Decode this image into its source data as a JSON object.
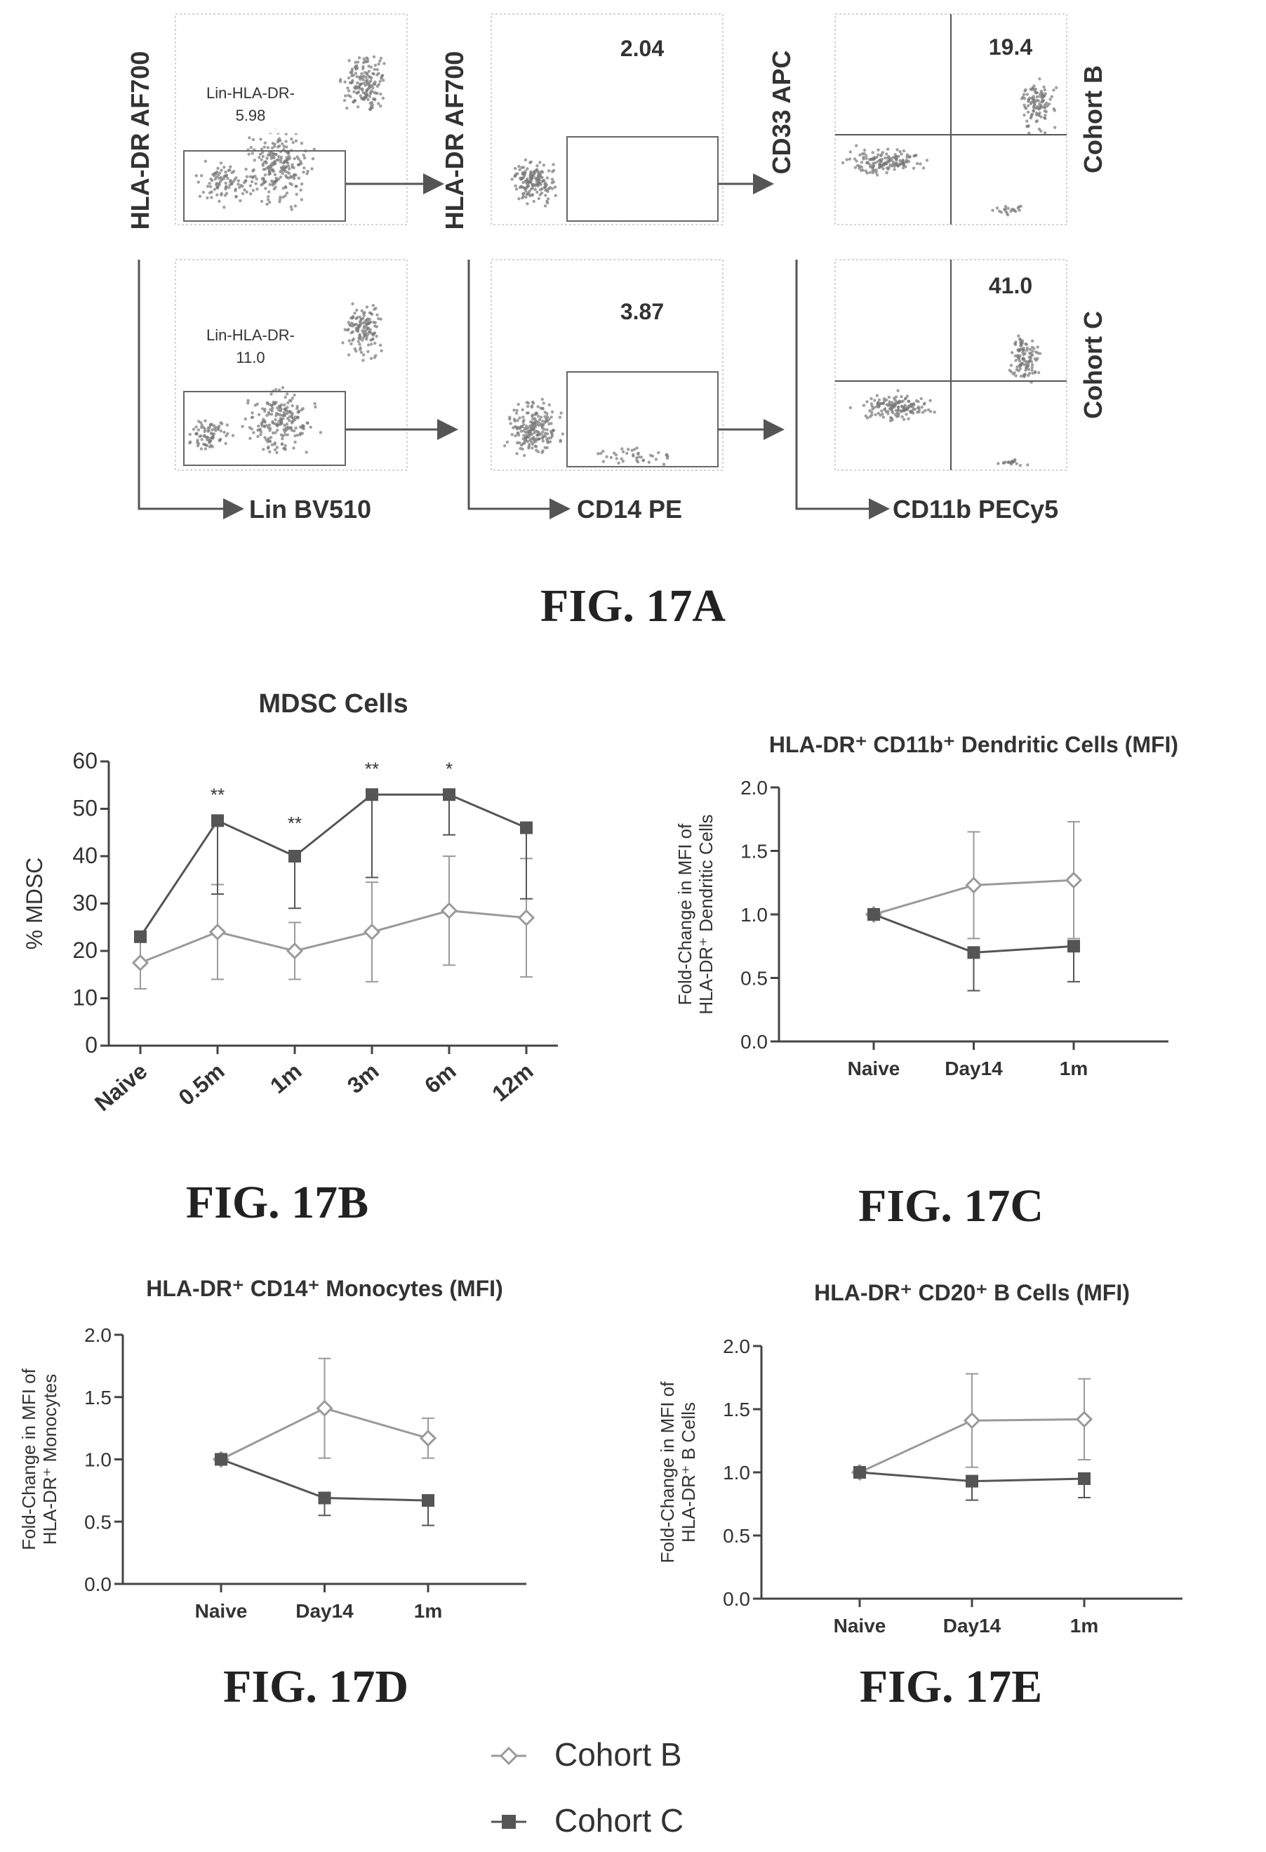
{
  "figure_labels": {
    "a": "FIG. 17A",
    "b": "FIG. 17B",
    "c": "FIG. 17C",
    "d": "FIG. 17D",
    "e": "FIG. 17E"
  },
  "legend": {
    "items": [
      {
        "name": "Cohort B",
        "color": "#9a9a9a",
        "marker": "open-diamond"
      },
      {
        "name": "Cohort C",
        "color": "#555555",
        "marker": "filled-square"
      }
    ]
  },
  "flow": {
    "row_labels": [
      "Cohort B",
      "Cohort C"
    ],
    "col1": {
      "ylabel": "HLA-DR AF700",
      "xlabel": "Lin BV510",
      "gate_name": "Lin-HLA-DR-",
      "values": [
        "5.98",
        "11.0"
      ]
    },
    "col2": {
      "ylabel": "HLA-DR AF700",
      "xlabel": "CD14 PE",
      "values": [
        "2.04",
        "3.87"
      ]
    },
    "col3": {
      "ylabel": "CD33 APC",
      "xlabel": "CD11b PECy5",
      "values": [
        "19.4",
        "41.0"
      ]
    }
  },
  "chart_data": [
    {
      "id": "b",
      "type": "line",
      "title": "MDSC Cells",
      "ylabel": "% MDSC",
      "categories": [
        "Naive",
        "0.5m",
        "1m",
        "3m",
        "6m",
        "12m"
      ],
      "ylim": [
        0,
        60
      ],
      "yticks": [
        "0",
        "10",
        "20",
        "30",
        "40",
        "50",
        "60"
      ],
      "series": [
        {
          "name": "Cohort B",
          "values": [
            17.5,
            24,
            20,
            24,
            28.5,
            27
          ],
          "err": [
            5.5,
            10,
            6,
            10.5,
            11.5,
            12.5
          ]
        },
        {
          "name": "Cohort C",
          "values": [
            23,
            47.5,
            40,
            53,
            53,
            46
          ],
          "err": [
            0,
            15.5,
            11,
            17.5,
            8.5,
            15
          ]
        }
      ],
      "annotations": [
        "**",
        "**",
        "**",
        "*"
      ]
    },
    {
      "id": "c",
      "type": "line",
      "title": "HLA-DR⁺ CD11b⁺ Dendritic Cells (MFI)",
      "ylabel_line1": "Fold-Change in MFI of",
      "ylabel_line2": "HLA-DR⁺ Dendritic Cells",
      "categories": [
        "Naive",
        "Day14",
        "1m"
      ],
      "ylim": [
        0,
        2
      ],
      "yticks": [
        "0.0",
        "0.5",
        "1.0",
        "1.5",
        "2.0"
      ],
      "series": [
        {
          "name": "Cohort B",
          "values": [
            1.0,
            1.23,
            1.27
          ],
          "err": [
            0,
            0.42,
            0.46
          ]
        },
        {
          "name": "Cohort C",
          "values": [
            1.0,
            0.7,
            0.75
          ],
          "err": [
            0,
            0.3,
            0.28
          ]
        }
      ]
    },
    {
      "id": "d",
      "type": "line",
      "title": "HLA-DR⁺ CD14⁺ Monocytes (MFI)",
      "ylabel_line1": "Fold-Change in MFI of",
      "ylabel_line2": "HLA-DR⁺ Monocytes",
      "categories": [
        "Naive",
        "Day14",
        "1m"
      ],
      "ylim": [
        0,
        2
      ],
      "yticks": [
        "0.0",
        "0.5",
        "1.0",
        "1.5",
        "2.0"
      ],
      "series": [
        {
          "name": "Cohort B",
          "values": [
            1.0,
            1.41,
            1.17
          ],
          "err": [
            0,
            0.4,
            0.16
          ]
        },
        {
          "name": "Cohort C",
          "values": [
            1.0,
            0.69,
            0.67
          ],
          "err": [
            0,
            0.14,
            0.2
          ]
        }
      ]
    },
    {
      "id": "e",
      "type": "line",
      "title": "HLA-DR⁺ CD20⁺ B Cells (MFI)",
      "ylabel_line1": "Fold-Change in MFI of",
      "ylabel_line2": "HLA-DR⁺ B Cells",
      "categories": [
        "Naive",
        "Day14",
        "1m"
      ],
      "ylim": [
        0,
        2
      ],
      "yticks": [
        "0.0",
        "0.5",
        "1.0",
        "1.5",
        "2.0"
      ],
      "series": [
        {
          "name": "Cohort B",
          "values": [
            1.0,
            1.41,
            1.42
          ],
          "err": [
            0,
            0.37,
            0.32
          ]
        },
        {
          "name": "Cohort C",
          "values": [
            1.0,
            0.93,
            0.95
          ],
          "err": [
            0,
            0.15,
            0.15
          ]
        }
      ]
    }
  ]
}
